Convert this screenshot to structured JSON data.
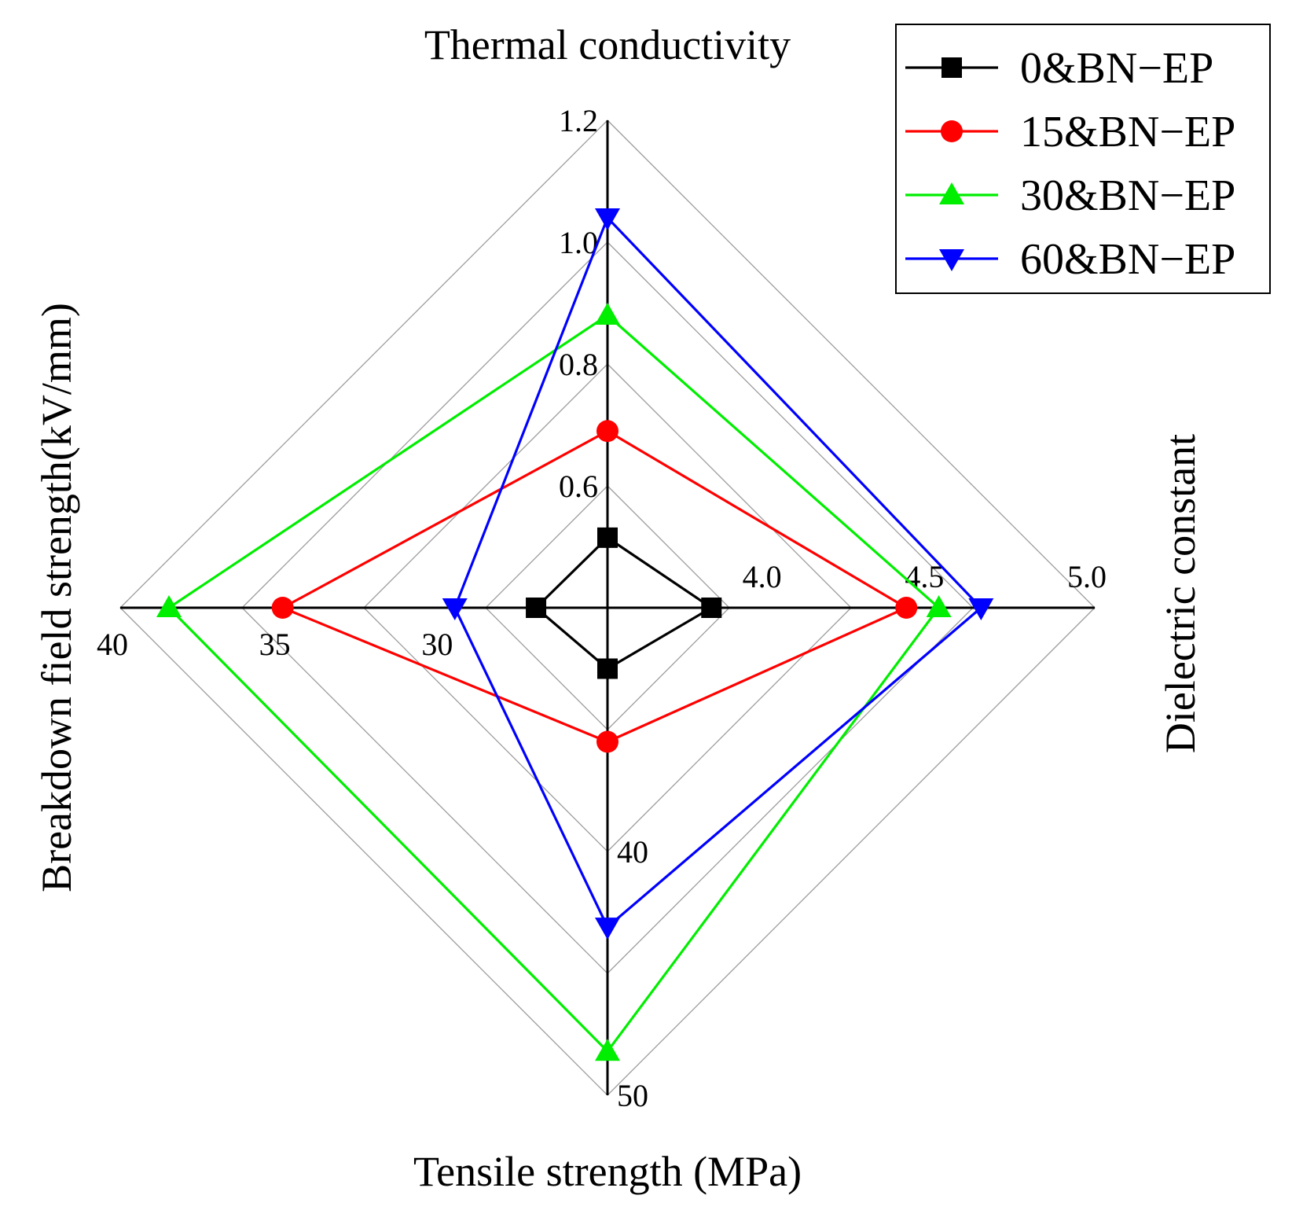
{
  "chart_data": {
    "type": "radar",
    "axes": [
      {
        "key": "top",
        "label": "Thermal conductivity",
        "ticks": [
          "0.6",
          "0.8",
          "1.0",
          "1.2"
        ],
        "tick_values": [
          0.6,
          0.8,
          1.0,
          1.2
        ],
        "range": [
          0.4,
          1.2
        ]
      },
      {
        "key": "right",
        "label": "Dielectric constant",
        "ticks": [
          "4.0",
          "4.5",
          "5.0"
        ],
        "tick_values": [
          4.0,
          4.5,
          5.0
        ],
        "range": [
          3.5,
          5.0
        ]
      },
      {
        "key": "bottom",
        "label": "Tensile strength (MPa)",
        "ticks": [
          "40",
          "50"
        ],
        "tick_values": [
          40,
          50
        ],
        "range": [
          30,
          50
        ]
      },
      {
        "key": "left",
        "label": "Breakdown field strength(kV/mm)",
        "ticks": [
          "30",
          "35",
          "40"
        ],
        "tick_values": [
          30,
          35,
          40
        ],
        "range": [
          25,
          40
        ]
      }
    ],
    "series": [
      {
        "name": "0&BN−EP",
        "color": "#000000",
        "marker": "square",
        "values": {
          "top": 0.515,
          "right": 3.82,
          "bottom": 32.5,
          "left": 27.2
        }
      },
      {
        "name": "15&BN−EP",
        "color": "#ff0000",
        "marker": "circle",
        "values": {
          "top": 0.69,
          "right": 4.42,
          "bottom": 35.5,
          "left": 35.0
        }
      },
      {
        "name": "30&BN−EP",
        "color": "#00ee00",
        "marker": "triangle-up",
        "values": {
          "top": 0.88,
          "right": 4.52,
          "bottom": 48.2,
          "left": 38.5
        }
      },
      {
        "name": "60&BN−EP",
        "color": "#0000ff",
        "marker": "triangle-down",
        "values": {
          "top": 1.04,
          "right": 4.65,
          "bottom": 43.1,
          "left": 29.7
        }
      }
    ],
    "legend_position": "top-right",
    "grid": true
  }
}
